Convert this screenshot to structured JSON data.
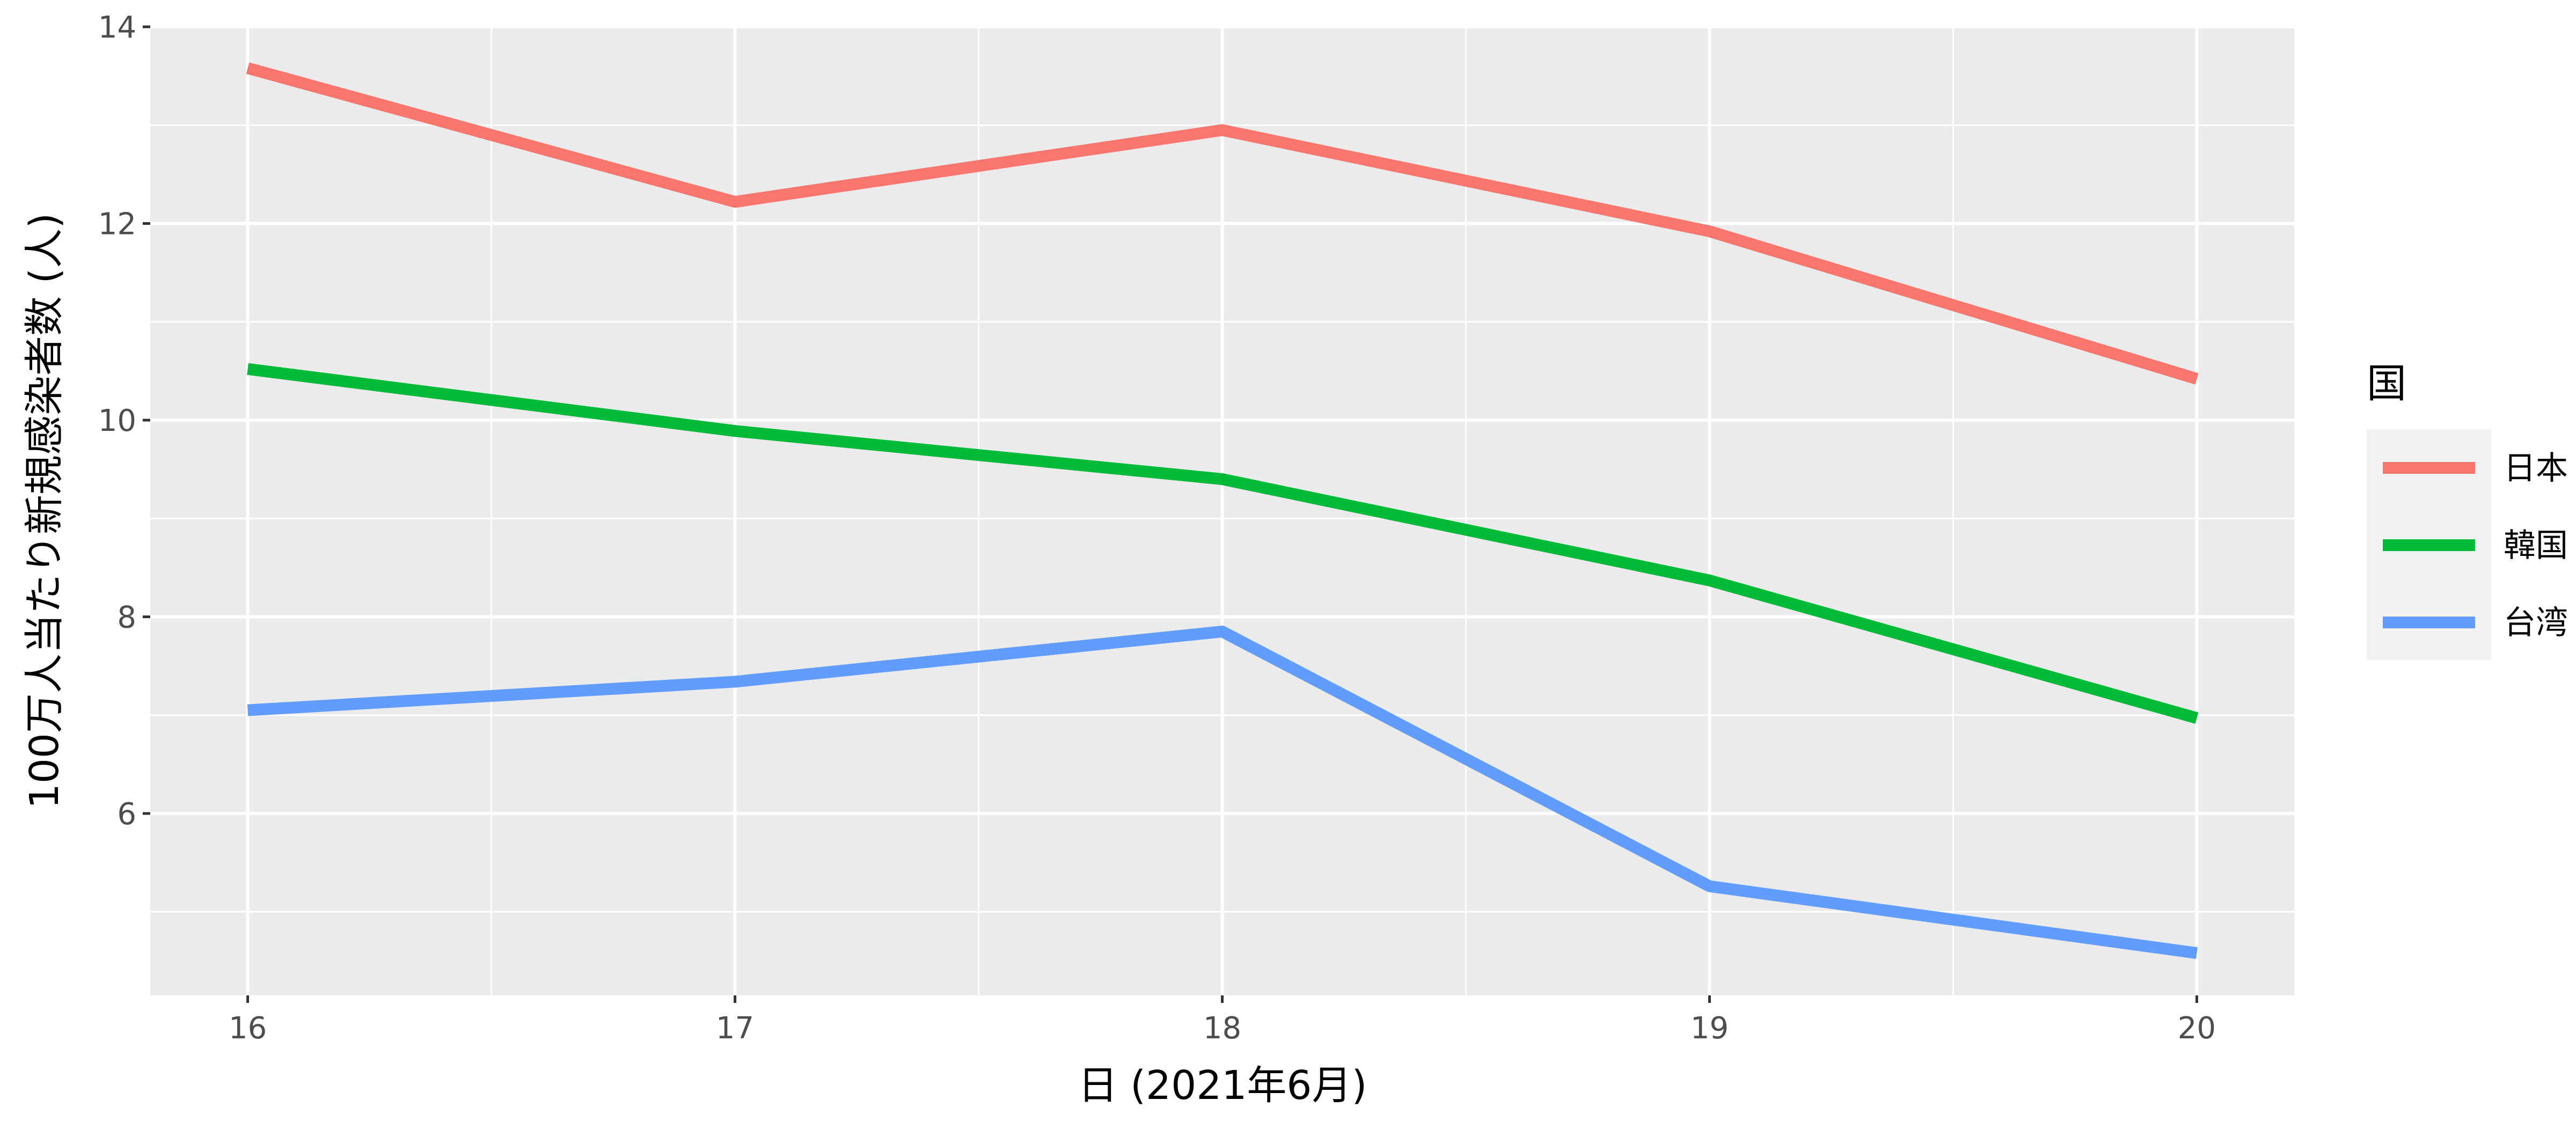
{
  "chart_data": {
    "type": "line",
    "xlabel": "日 (2021年6月)",
    "ylabel": "100万人当たり新規感染者数 (人)",
    "x": [
      16,
      17,
      18,
      19,
      20
    ],
    "x_tick_labels": [
      "16",
      "17",
      "18",
      "19",
      "20"
    ],
    "xlim": [
      15.8,
      20.2
    ],
    "ylim": [
      4.15,
      14.0
    ],
    "y_ticks": [
      6,
      8,
      10,
      12,
      14
    ],
    "y_tick_labels": [
      "6",
      "8",
      "10",
      "12",
      "14"
    ],
    "grid": true,
    "legend": {
      "title": "国",
      "position": "right"
    },
    "series": [
      {
        "name": "日本",
        "color": "#F8766D",
        "values": [
          13.58,
          12.22,
          12.95,
          11.92,
          10.42
        ]
      },
      {
        "name": "韓国",
        "color": "#00BA38",
        "values": [
          10.52,
          9.89,
          9.4,
          8.37,
          6.97
        ]
      },
      {
        "name": "台湾",
        "color": "#619CFF",
        "values": [
          7.05,
          7.34,
          7.85,
          5.26,
          4.58
        ]
      }
    ]
  }
}
